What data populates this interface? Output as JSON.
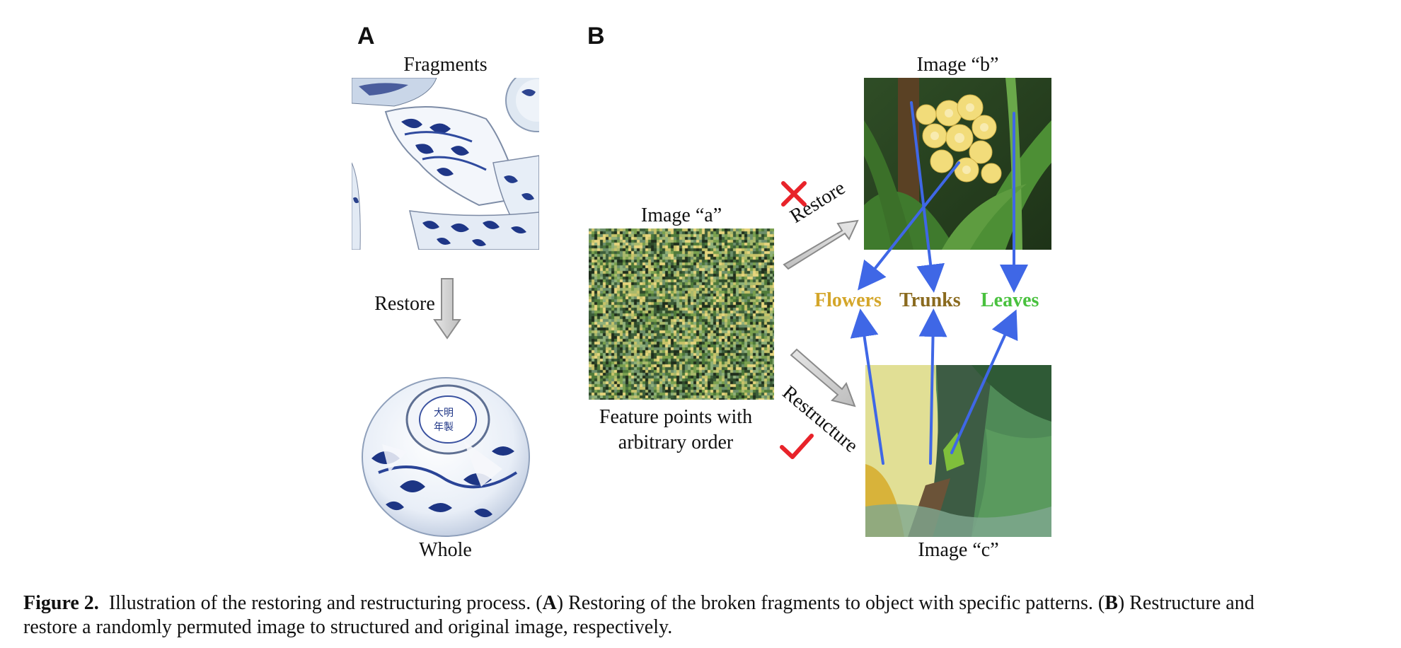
{
  "panels": {
    "a_letter": "A",
    "b_letter": "B"
  },
  "panel_a": {
    "top_label": "Fragments",
    "arrow_label": "Restore",
    "bottom_label": "Whole"
  },
  "panel_b": {
    "image_a_label": "Image “a”",
    "image_b_label": "Image “b”",
    "image_c_label": "Image “c”",
    "image_a_caption_line1": "Feature points with",
    "image_a_caption_line2": "arbitrary order",
    "restore_label": "Restore",
    "restructure_label": "Restructure",
    "categories": {
      "flowers": "Flowers",
      "trunks": "Trunks",
      "leaves": "Leaves"
    },
    "colors": {
      "flowers": "#d4a62a",
      "trunks": "#8a6a1e",
      "leaves": "#49c13e",
      "arrow_blue": "#3f67e6",
      "wrong_mark": "#e8232a",
      "right_mark": "#e8232a"
    }
  },
  "caption": {
    "figure_label": "Figure 2.",
    "text_1": "Illustration of the restoring and restructuring process. (",
    "a_ref": "A",
    "text_2": ") Restoring of the broken fragments to object with specific patterns. (",
    "b_ref": "B",
    "text_3": ") Restructure and",
    "line_2": "restore a randomly permuted image to structured and original image, respectively."
  }
}
